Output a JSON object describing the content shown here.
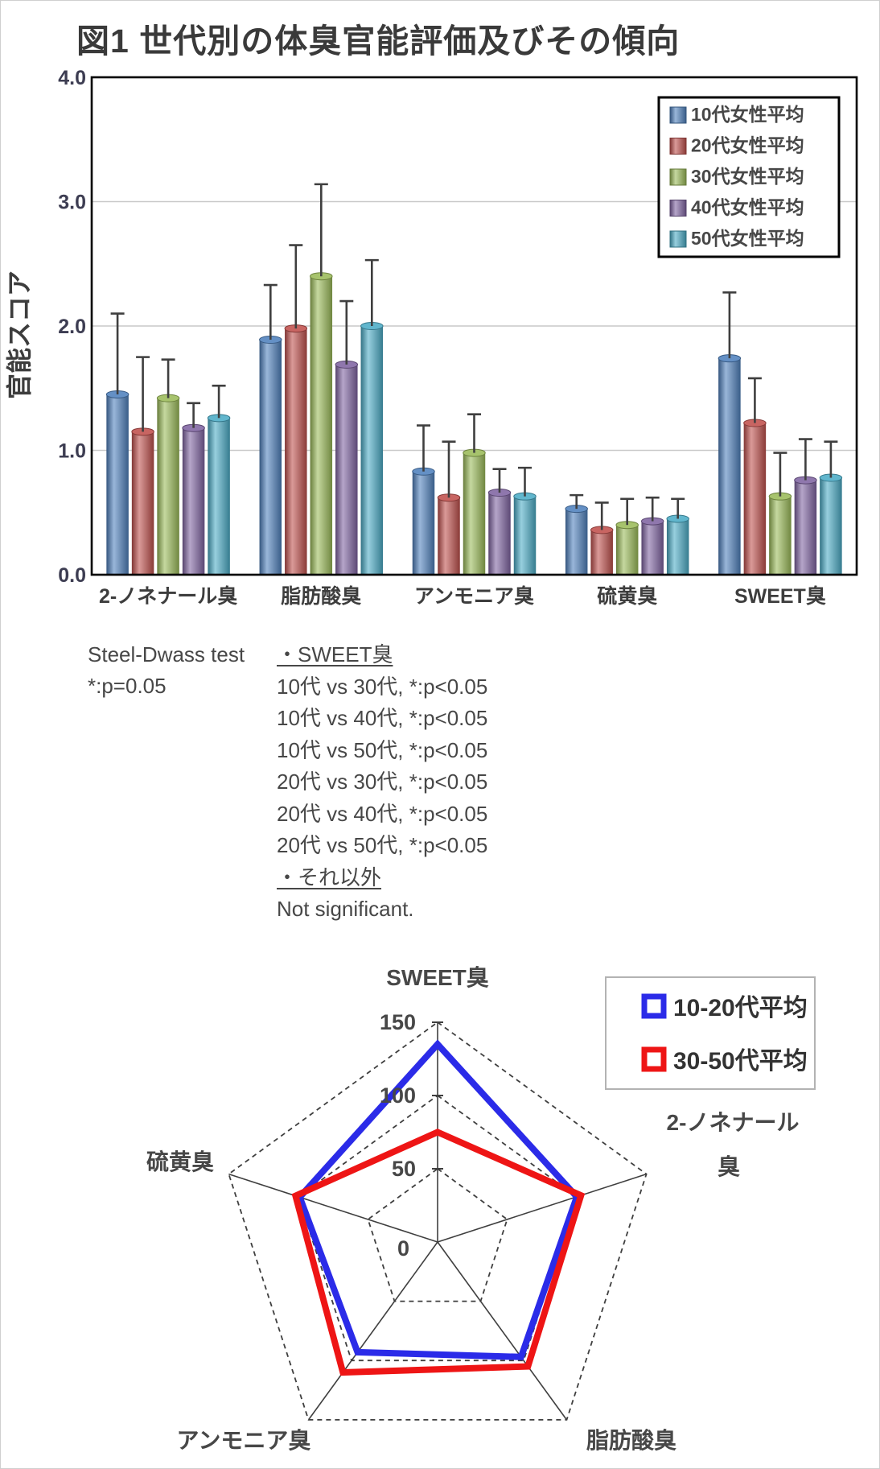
{
  "title": "図1 世代別の体臭官能評価及びその傾向",
  "chart_data": [
    {
      "type": "bar",
      "title": "世代別の体臭官能評価",
      "ylabel": "官能スコア",
      "ylim": [
        0.0,
        4.0
      ],
      "ytick_labels": [
        "0.0",
        "1.0",
        "2.0",
        "3.0",
        "4.0"
      ],
      "grid": true,
      "legend_position": "top-right",
      "categories": [
        "2-ノネナール臭",
        "脂肪酸臭",
        "アンモニア臭",
        "硫黄臭",
        "SWEET臭"
      ],
      "series": [
        {
          "name": "10代女性平均",
          "color": "#4F81BD",
          "values": [
            1.45,
            1.89,
            0.83,
            0.53,
            1.74
          ],
          "error_top": [
            2.1,
            2.33,
            1.2,
            0.64,
            2.27
          ]
        },
        {
          "name": "20代女性平均",
          "color": "#C0504D",
          "values": [
            1.15,
            1.98,
            0.62,
            0.36,
            1.22
          ],
          "error_top": [
            1.75,
            2.65,
            1.07,
            0.58,
            1.58
          ]
        },
        {
          "name": "30代女性平均",
          "color": "#9BBB59",
          "values": [
            1.42,
            2.4,
            0.98,
            0.4,
            0.63
          ],
          "error_top": [
            1.73,
            3.14,
            1.29,
            0.61,
            0.98
          ]
        },
        {
          "name": "40代女性平均",
          "color": "#8064A2",
          "values": [
            1.18,
            1.69,
            0.66,
            0.43,
            0.76
          ],
          "error_top": [
            1.38,
            2.2,
            0.85,
            0.62,
            1.09
          ]
        },
        {
          "name": "50代女性平均",
          "color": "#4BACC6",
          "values": [
            1.26,
            2.0,
            0.63,
            0.45,
            0.78
          ],
          "error_top": [
            1.52,
            2.53,
            0.86,
            0.61,
            1.07
          ]
        }
      ]
    },
    {
      "type": "radar",
      "rmax": 150,
      "rtick_labels": [
        "0",
        "50",
        "100",
        "150"
      ],
      "rticks": [
        0,
        50,
        100,
        150
      ],
      "axes": [
        "SWEET臭",
        "2-ノネナール臭",
        "脂肪酸臭",
        "アンモニア臭",
        "硫黄臭"
      ],
      "axes_display": [
        [
          "SWEET臭"
        ],
        [
          "2-ノネナール",
          "臭"
        ],
        [
          "脂肪酸臭"
        ],
        [
          "アンモニア臭"
        ],
        [
          "硫黄臭"
        ]
      ],
      "series": [
        {
          "name": "10-20代平均",
          "color": "#2B2BE8",
          "values": [
            135,
            100,
            97,
            93,
            99
          ]
        },
        {
          "name": "30-50代平均",
          "color": "#EE1515",
          "values": [
            75,
            103,
            105,
            110,
            102
          ]
        }
      ]
    }
  ],
  "stats": {
    "test_name": "Steel-Dwass test",
    "alpha": "*:p=0.05",
    "lines": [
      {
        "text": "・SWEET臭",
        "underline": true
      },
      {
        "text": "10代 vs 30代, *:p<0.05",
        "underline": false
      },
      {
        "text": "10代 vs 40代, *:p<0.05",
        "underline": false
      },
      {
        "text": "10代 vs 50代, *:p<0.05",
        "underline": false
      },
      {
        "text": "20代 vs 30代, *:p<0.05",
        "underline": false
      },
      {
        "text": "20代 vs 40代, *:p<0.05",
        "underline": false
      },
      {
        "text": "20代 vs 50代, *:p<0.05",
        "underline": false
      },
      {
        "text": "・それ以外",
        "underline": true
      },
      {
        "text": "Not significant.",
        "underline": false
      }
    ]
  }
}
